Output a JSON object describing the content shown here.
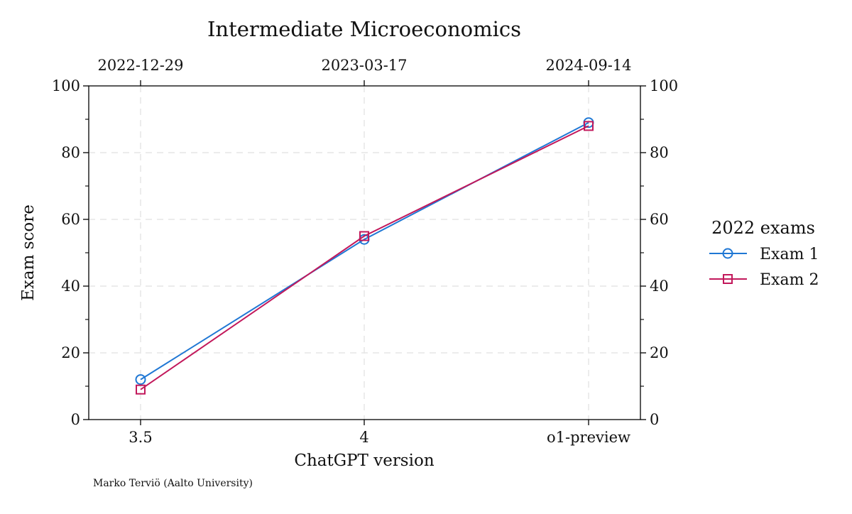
{
  "chart_data": {
    "type": "line",
    "title": "Intermediate Microeconomics",
    "xlabel": "ChatGPT version",
    "ylabel": "Exam score",
    "categories": [
      "3.5",
      "4",
      "o1-preview"
    ],
    "top_axis_labels": [
      "2022-12-29",
      "2023-03-17",
      "2024-09-14"
    ],
    "ylim": [
      0,
      100
    ],
    "y_ticks": [
      0,
      20,
      40,
      60,
      80,
      100
    ],
    "y_minor_ticks": [
      10,
      30,
      50,
      70,
      90
    ],
    "grid": true,
    "series": [
      {
        "name": "Exam 1",
        "values": [
          12,
          54,
          89
        ],
        "color": "#1f77d4",
        "marker": "circle"
      },
      {
        "name": "Exam 2",
        "values": [
          9,
          55,
          88
        ],
        "color": "#c2185b",
        "marker": "square"
      }
    ],
    "legend": {
      "title": "2022 exams",
      "placement": "right"
    },
    "caption": "Marko Terviö (Aalto University)"
  }
}
